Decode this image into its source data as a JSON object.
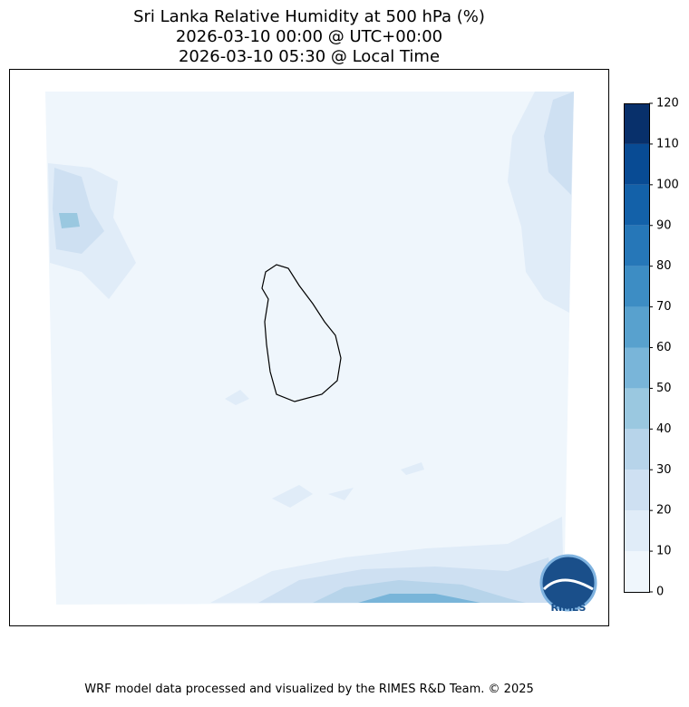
{
  "title": [
    "Sri Lanka Relative Humidity at 500 hPa (%)",
    "2026-03-10 00:00 @ UTC+00:00",
    "2026-03-10 05:30 @ Local Time"
  ],
  "colorbar": {
    "lim": [
      0,
      120
    ],
    "ticks": [
      0,
      10,
      20,
      30,
      40,
      50,
      60,
      70,
      80,
      90,
      100,
      110,
      120
    ],
    "colors": [
      "#eff6fc",
      "#e0ecf8",
      "#cee0f2",
      "#b7d4ea",
      "#9ac8e0",
      "#79b5d9",
      "#58a1ce",
      "#3d8dc4",
      "#2677b8",
      "#1361a9",
      "#084b94",
      "#08306b"
    ]
  },
  "logo": "RIMES",
  "footer": "WRF model data processed and visualized by the RIMES R&D Team. © 2025"
}
